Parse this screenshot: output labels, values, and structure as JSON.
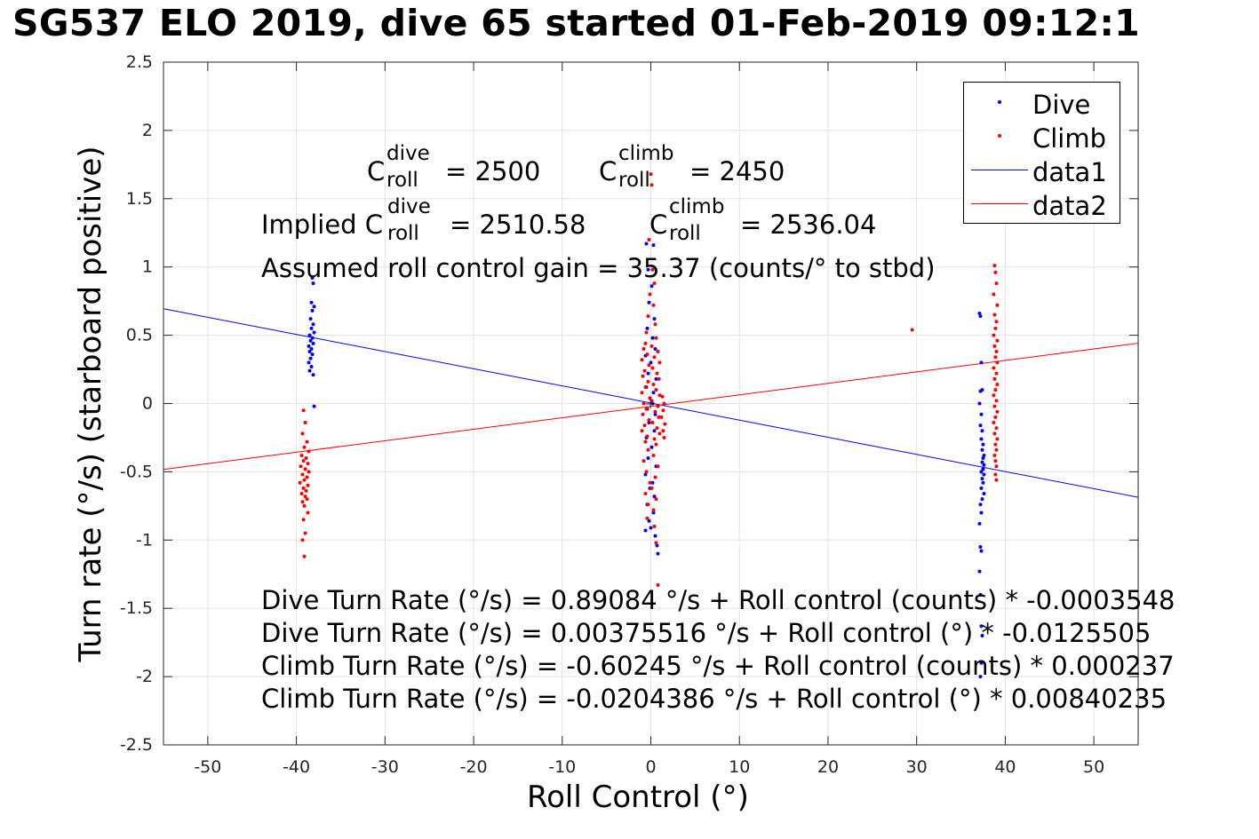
{
  "title": "SG537 ELO 2019, dive 65 started 01-Feb-2019 09:12:1",
  "annotations": {
    "c_roll": "C",
    "roll": "roll",
    "dive": "dive",
    "climb": "climb",
    "cdive_value": "= 2500",
    "cclimb_value": "= 2450",
    "implied_prefix": "Implied C",
    "implied_dive_value": "= 2510.58",
    "implied_climb_value": "= 2536.04",
    "gain": "Assumed roll control gain = 35.37 (counts/° to stbd)",
    "eq1": "Dive Turn Rate (°/s) = 0.89084 °/s + Roll control (counts) * -0.0003548",
    "eq2": "Dive Turn Rate (°/s) = 0.00375516 °/s + Roll control (°) * -0.0125505",
    "eq3": "Climb Turn Rate (°/s) = -0.60245 °/s + Roll control (counts) * 0.000237",
    "eq4": "Climb Turn Rate (°/s) = -0.0204386 °/s + Roll control (°) * 0.00840235"
  },
  "legend": {
    "items": [
      {
        "label": "Dive",
        "kind": "marker",
        "color": "#0000ff"
      },
      {
        "label": "Climb",
        "kind": "marker",
        "color": "#ff0000"
      },
      {
        "label": "data1",
        "kind": "line",
        "color": "#0000ff"
      },
      {
        "label": "data2",
        "kind": "line",
        "color": "#ff0000"
      }
    ]
  },
  "chart_data": {
    "type": "scatter",
    "title": "SG537 ELO 2019, dive 65 started 01-Feb-2019 09:12:1",
    "xlabel": "Roll Control (°)",
    "ylabel": "Turn rate (°/s) (starboard positive)",
    "xlim": [
      -55,
      55
    ],
    "ylim": [
      -2.5,
      2.5
    ],
    "xticks": [
      -50,
      -40,
      -30,
      -20,
      -10,
      0,
      10,
      20,
      30,
      40,
      50
    ],
    "yticks": [
      -2.5,
      -2,
      -1.5,
      -1,
      -0.5,
      0,
      0.5,
      1,
      1.5,
      2,
      2.5
    ],
    "grid": true,
    "legend_position": "top-right",
    "series": [
      {
        "name": "Dive",
        "kind": "scatter",
        "color": "#0000ff",
        "points": [
          [
            -38.2,
            0.92
          ],
          [
            -38.1,
            0.88
          ],
          [
            -38.3,
            0.74
          ],
          [
            -38.0,
            0.71
          ],
          [
            -38.2,
            0.68
          ],
          [
            -38.4,
            0.62
          ],
          [
            -38.1,
            0.58
          ],
          [
            -38.3,
            0.55
          ],
          [
            -38.0,
            0.52
          ],
          [
            -38.5,
            0.5
          ],
          [
            -38.2,
            0.48
          ],
          [
            -38.4,
            0.46
          ],
          [
            -38.1,
            0.44
          ],
          [
            -38.6,
            0.42
          ],
          [
            -38.3,
            0.4
          ],
          [
            -38.5,
            0.38
          ],
          [
            -38.2,
            0.36
          ],
          [
            -38.4,
            0.33
          ],
          [
            -38.6,
            0.3
          ],
          [
            -38.3,
            0.27
          ],
          [
            -38.5,
            0.24
          ],
          [
            -38.1,
            0.21
          ],
          [
            -38.0,
            -0.02
          ],
          [
            -0.5,
            1.17
          ],
          [
            0.3,
            1.16
          ],
          [
            -0.3,
            0.98
          ],
          [
            0.1,
            0.86
          ],
          [
            -0.2,
            0.74
          ],
          [
            0.4,
            0.62
          ],
          [
            -0.4,
            0.55
          ],
          [
            0.2,
            0.48
          ],
          [
            0.5,
            0.4
          ],
          [
            -0.6,
            0.35
          ],
          [
            0.0,
            0.3
          ],
          [
            -0.3,
            0.22
          ],
          [
            0.6,
            0.18
          ],
          [
            -0.5,
            0.12
          ],
          [
            0.3,
            0.08
          ],
          [
            -0.1,
            0.04
          ],
          [
            0.2,
            0.0
          ],
          [
            -0.4,
            -0.04
          ],
          [
            0.5,
            -0.08
          ],
          [
            -0.2,
            -0.14
          ],
          [
            0.4,
            -0.2
          ],
          [
            -0.5,
            -0.25
          ],
          [
            0.1,
            -0.32
          ],
          [
            -0.3,
            -0.4
          ],
          [
            0.6,
            -0.46
          ],
          [
            -0.6,
            -0.52
          ],
          [
            0.2,
            -0.58
          ],
          [
            -0.1,
            -0.62
          ],
          [
            0.4,
            -0.68
          ],
          [
            -0.4,
            -0.74
          ],
          [
            0.3,
            -0.8
          ],
          [
            -0.2,
            -0.86
          ],
          [
            0.0,
            -0.91
          ],
          [
            -0.6,
            -0.93
          ],
          [
            0.5,
            -0.97
          ],
          [
            0.7,
            -1.04
          ],
          [
            0.8,
            -1.1
          ],
          [
            37.1,
            0.66
          ],
          [
            37.2,
            0.64
          ],
          [
            37.3,
            0.3
          ],
          [
            37.4,
            0.1
          ],
          [
            37.2,
            0.09
          ],
          [
            37.1,
            0.0
          ],
          [
            37.3,
            -0.08
          ],
          [
            37.2,
            -0.16
          ],
          [
            37.4,
            -0.2
          ],
          [
            37.3,
            -0.26
          ],
          [
            37.5,
            -0.3
          ],
          [
            37.4,
            -0.34
          ],
          [
            37.6,
            -0.38
          ],
          [
            37.5,
            -0.4
          ],
          [
            37.4,
            -0.43
          ],
          [
            37.6,
            -0.45
          ],
          [
            37.5,
            -0.48
          ],
          [
            37.3,
            -0.5
          ],
          [
            37.6,
            -0.52
          ],
          [
            37.4,
            -0.55
          ],
          [
            37.5,
            -0.58
          ],
          [
            37.3,
            -0.62
          ],
          [
            37.6,
            -0.66
          ],
          [
            37.4,
            -0.7
          ],
          [
            37.2,
            -0.74
          ],
          [
            37.3,
            -0.8
          ],
          [
            37.1,
            -0.88
          ],
          [
            37.2,
            -1.05
          ],
          [
            37.3,
            -1.08
          ],
          [
            37.1,
            -1.23
          ],
          [
            37.2,
            -1.4
          ],
          [
            37.3,
            -1.63
          ],
          [
            37.4,
            -1.7
          ],
          [
            37.3,
            -1.9
          ],
          [
            37.2,
            -2.0
          ]
        ]
      },
      {
        "name": "Climb",
        "kind": "scatter",
        "color": "#ff0000",
        "points": [
          [
            -39.2,
            -0.05
          ],
          [
            -39.0,
            -0.14
          ],
          [
            -39.3,
            -0.22
          ],
          [
            -38.8,
            -0.28
          ],
          [
            -39.1,
            -0.32
          ],
          [
            -38.6,
            -0.35
          ],
          [
            -39.4,
            -0.38
          ],
          [
            -38.9,
            -0.4
          ],
          [
            -39.2,
            -0.42
          ],
          [
            -38.7,
            -0.44
          ],
          [
            -39.5,
            -0.46
          ],
          [
            -39.0,
            -0.48
          ],
          [
            -38.6,
            -0.5
          ],
          [
            -39.3,
            -0.52
          ],
          [
            -38.8,
            -0.54
          ],
          [
            -39.1,
            -0.56
          ],
          [
            -39.6,
            -0.58
          ],
          [
            -38.7,
            -0.6
          ],
          [
            -39.2,
            -0.62
          ],
          [
            -38.9,
            -0.64
          ],
          [
            -39.4,
            -0.66
          ],
          [
            -39.0,
            -0.68
          ],
          [
            -38.8,
            -0.7
          ],
          [
            -39.3,
            -0.72
          ],
          [
            -39.1,
            -0.75
          ],
          [
            -38.7,
            -0.8
          ],
          [
            -39.2,
            -0.85
          ],
          [
            -39.0,
            -0.95
          ],
          [
            -39.3,
            -1.0
          ],
          [
            -39.1,
            -1.12
          ],
          [
            0.0,
            1.68
          ],
          [
            0.1,
            1.6
          ],
          [
            -0.2,
            1.2
          ],
          [
            0.2,
            0.98
          ],
          [
            0.4,
            0.88
          ],
          [
            -0.1,
            0.8
          ],
          [
            0.3,
            0.72
          ],
          [
            -0.3,
            0.64
          ],
          [
            0.5,
            0.58
          ],
          [
            -0.5,
            0.52
          ],
          [
            0.6,
            0.48
          ],
          [
            -0.6,
            0.44
          ],
          [
            0.1,
            0.42
          ],
          [
            -0.8,
            0.4
          ],
          [
            0.8,
            0.38
          ],
          [
            -0.4,
            0.36
          ],
          [
            0.4,
            0.34
          ],
          [
            -1.0,
            0.32
          ],
          [
            1.0,
            0.3
          ],
          [
            -0.2,
            0.28
          ],
          [
            0.2,
            0.26
          ],
          [
            -0.7,
            0.24
          ],
          [
            0.7,
            0.22
          ],
          [
            -0.9,
            0.2
          ],
          [
            0.9,
            0.18
          ],
          [
            -0.3,
            0.16
          ],
          [
            0.3,
            0.14
          ],
          [
            -0.6,
            0.12
          ],
          [
            0.6,
            0.1
          ],
          [
            -1.0,
            0.08
          ],
          [
            1.0,
            0.06
          ],
          [
            -0.1,
            0.04
          ],
          [
            0.1,
            0.02
          ],
          [
            -0.8,
            0.0
          ],
          [
            0.8,
            -0.02
          ],
          [
            -0.5,
            -0.04
          ],
          [
            0.5,
            -0.06
          ],
          [
            -0.9,
            -0.08
          ],
          [
            0.9,
            -0.1
          ],
          [
            -0.2,
            -0.12
          ],
          [
            0.2,
            -0.14
          ],
          [
            -0.7,
            -0.16
          ],
          [
            0.7,
            -0.18
          ],
          [
            -1.0,
            -0.2
          ],
          [
            1.0,
            -0.22
          ],
          [
            -0.4,
            -0.24
          ],
          [
            0.4,
            -0.26
          ],
          [
            -0.6,
            -0.28
          ],
          [
            0.6,
            -0.3
          ],
          [
            -0.3,
            -0.34
          ],
          [
            0.3,
            -0.38
          ],
          [
            -0.8,
            -0.42
          ],
          [
            0.8,
            -0.46
          ],
          [
            -0.5,
            -0.5
          ],
          [
            0.5,
            -0.54
          ],
          [
            -0.1,
            -0.58
          ],
          [
            0.1,
            -0.62
          ],
          [
            -0.6,
            -0.66
          ],
          [
            0.6,
            -0.7
          ],
          [
            -0.3,
            -0.74
          ],
          [
            0.3,
            -0.78
          ],
          [
            -0.4,
            -0.84
          ],
          [
            0.4,
            -0.9
          ],
          [
            0.6,
            -1.02
          ],
          [
            0.8,
            -1.33
          ],
          [
            1.2,
            -0.1
          ],
          [
            1.4,
            -0.05
          ],
          [
            1.5,
            0.0
          ],
          [
            1.3,
            0.05
          ],
          [
            1.6,
            -0.15
          ],
          [
            1.4,
            -0.2
          ],
          [
            1.5,
            -0.25
          ],
          [
            29.5,
            0.54
          ],
          [
            38.8,
            1.01
          ],
          [
            38.9,
            0.96
          ],
          [
            39.0,
            0.88
          ],
          [
            38.7,
            0.8
          ],
          [
            39.1,
            0.72
          ],
          [
            38.8,
            0.65
          ],
          [
            39.0,
            0.6
          ],
          [
            38.9,
            0.55
          ],
          [
            38.7,
            0.5
          ],
          [
            39.1,
            0.46
          ],
          [
            38.8,
            0.42
          ],
          [
            39.0,
            0.38
          ],
          [
            38.9,
            0.34
          ],
          [
            39.1,
            0.3
          ],
          [
            38.7,
            0.26
          ],
          [
            39.0,
            0.22
          ],
          [
            38.8,
            0.18
          ],
          [
            39.1,
            0.14
          ],
          [
            38.9,
            0.1
          ],
          [
            38.7,
            0.06
          ],
          [
            39.0,
            0.02
          ],
          [
            38.8,
            -0.02
          ],
          [
            39.1,
            -0.06
          ],
          [
            38.9,
            -0.1
          ],
          [
            38.7,
            -0.14
          ],
          [
            39.0,
            -0.18
          ],
          [
            38.8,
            -0.22
          ],
          [
            39.1,
            -0.26
          ],
          [
            38.9,
            -0.3
          ],
          [
            39.0,
            -0.34
          ],
          [
            38.8,
            -0.38
          ],
          [
            38.9,
            -0.42
          ],
          [
            39.0,
            -0.46
          ],
          [
            38.9,
            -0.52
          ],
          [
            39.0,
            -0.56
          ]
        ]
      },
      {
        "name": "data1",
        "kind": "line",
        "color": "#0000ff",
        "x": [
          -55,
          55
        ],
        "y": [
          0.6941,
          -0.6866
        ]
      },
      {
        "name": "data2",
        "kind": "line",
        "color": "#ff0000",
        "x": [
          -55,
          55
        ],
        "y": [
          -0.4826,
          0.4417
        ]
      }
    ]
  }
}
